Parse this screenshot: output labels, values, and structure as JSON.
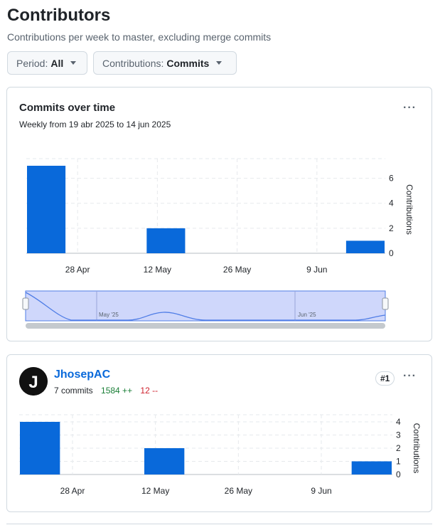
{
  "header": {
    "title": "Contributors",
    "subtitle": "Contributions per week to master, excluding merge commits"
  },
  "filters": {
    "period_label": "Period:",
    "period_value": "All",
    "contrib_label": "Contributions:",
    "contrib_value": "Commits"
  },
  "overview": {
    "title": "Commits over time",
    "subtitle": "Weekly from 19 abr 2025 to 14 jun 2025",
    "menu_glyph": "···",
    "brush_labels": [
      "May '25",
      "Jun '25"
    ]
  },
  "contributor": {
    "name": "JhosepAC",
    "commits_text": "7 commits",
    "additions_text": "1584 ++",
    "deletions_text": "12 --",
    "rank": "#1",
    "menu_glyph": "···",
    "avatar_letter": "J"
  },
  "colors": {
    "bar": "#0969da",
    "brush_fill": "#cfd7fb",
    "brush_line": "#4f7de6"
  },
  "chart_data": [
    {
      "type": "bar",
      "title": "Commits over time",
      "subtitle": "Weekly from 19 abr 2025 to 14 jun 2025",
      "x_tick_labels": [
        "28 Apr",
        "12 May",
        "26 May",
        "9 Jun"
      ],
      "y_tick_labels": [
        "0",
        "2",
        "4",
        "6"
      ],
      "ylabel": "Contributions",
      "ylim": [
        0,
        7
      ],
      "grid": true,
      "series": [
        {
          "values": [
            {
              "week": "2025-04-19",
              "value": 7
            },
            {
              "week": "2025-05-10",
              "value": 2
            },
            {
              "week": "2025-06-14",
              "value": 1
            }
          ]
        }
      ]
    },
    {
      "type": "bar",
      "title": "JhosepAC",
      "x_tick_labels": [
        "28 Apr",
        "12 May",
        "26 May",
        "9 Jun"
      ],
      "y_tick_labels": [
        "0",
        "1",
        "2",
        "3",
        "4"
      ],
      "ylabel": "Contributions",
      "ylim": [
        0,
        4
      ],
      "grid": true,
      "series": [
        {
          "values": [
            {
              "week": "2025-04-19",
              "value": 4
            },
            {
              "week": "2025-05-10",
              "value": 2
            },
            {
              "week": "2025-06-14",
              "value": 1
            }
          ]
        }
      ]
    }
  ]
}
